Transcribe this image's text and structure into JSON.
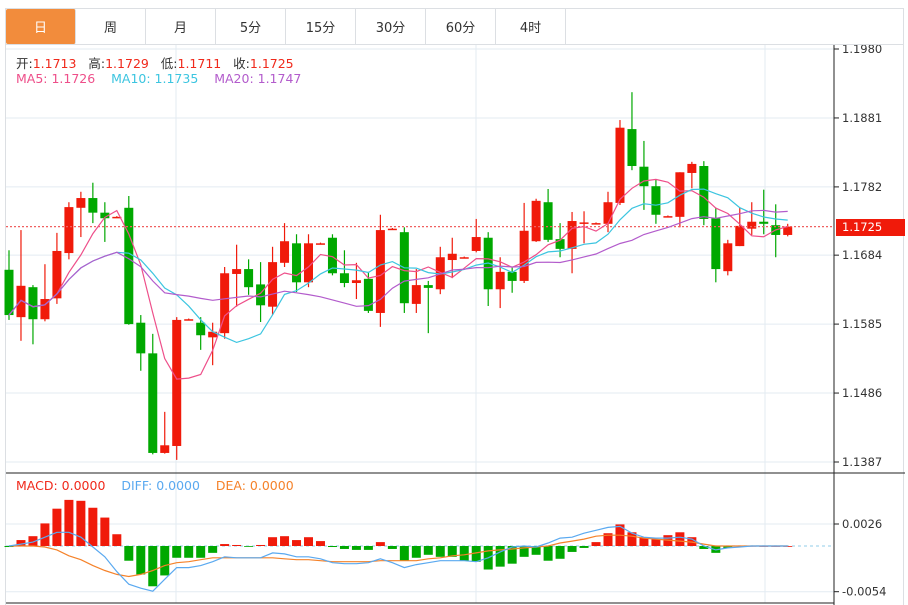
{
  "tabs": [
    {
      "label": "日",
      "active": true
    },
    {
      "label": "周",
      "active": false
    },
    {
      "label": "月",
      "active": false
    },
    {
      "label": "5分",
      "active": false
    },
    {
      "label": "15分",
      "active": false
    },
    {
      "label": "30分",
      "active": false
    },
    {
      "label": "60分",
      "active": false
    },
    {
      "label": "4时",
      "active": false
    }
  ],
  "ohlc_legend": {
    "open_label": "开:",
    "open": "1.1713",
    "high_label": "高:",
    "high": "1.1729",
    "low_label": "低:",
    "low": "1.1711",
    "close_label": "收:",
    "close": "1.1725"
  },
  "ma_legend": {
    "ma5": "MA5: 1.1726",
    "ma10": "MA10: 1.1735",
    "ma20": "MA20: 1.1747"
  },
  "macd_legend": {
    "macd": "MACD: 0.0000",
    "diff": "DIFF: 0.0000",
    "dea": "DEA: 0.0000"
  },
  "current_price": "1.1725",
  "colors": {
    "up": "#f01a0a",
    "down": "#00a800",
    "ma5": "#ee4f8a",
    "ma10": "#3cc5e0",
    "ma20": "#b35ccc",
    "diff": "#5aa9f0",
    "dea": "#f5822a",
    "tab_active": "#f28c3c"
  },
  "chart_data": {
    "type": "candlestick",
    "price_axis": {
      "ticks": [
        "1.1980",
        "1.1881",
        "1.1782",
        "1.1684",
        "1.1585",
        "1.1486",
        "1.1387"
      ],
      "range": [
        1.1387,
        1.198
      ]
    },
    "macd_axis": {
      "ticks": [
        "0.0026",
        "-0.0054"
      ],
      "range": [
        -0.0054,
        0.0026
      ]
    },
    "candles": [
      [
        1.1663,
        1.1691,
        1.1591,
        1.1598
      ],
      [
        1.1595,
        1.172,
        1.1561,
        1.164
      ],
      [
        1.1638,
        1.1641,
        1.1556,
        1.1592
      ],
      [
        1.1592,
        1.1671,
        1.1589,
        1.1621
      ],
      [
        1.1622,
        1.1716,
        1.1614,
        1.169
      ],
      [
        1.1687,
        1.176,
        1.1678,
        1.1753
      ],
      [
        1.1752,
        1.1775,
        1.171,
        1.1766
      ],
      [
        1.1766,
        1.1788,
        1.173,
        1.1745
      ],
      [
        1.1745,
        1.176,
        1.1703,
        1.1737
      ],
      [
        1.1739,
        1.174,
        1.1738,
        1.1739
      ],
      [
        1.1752,
        1.1769,
        1.1584,
        1.1585
      ],
      [
        1.1587,
        1.1598,
        1.1518,
        1.1543
      ],
      [
        1.1543,
        1.1571,
        1.1398,
        1.14
      ],
      [
        1.14,
        1.1459,
        1.1399,
        1.1411
      ],
      [
        1.141,
        1.1595,
        1.139,
        1.1591
      ],
      [
        1.1592,
        1.1593,
        1.1591,
        1.1592
      ],
      [
        1.1587,
        1.1595,
        1.1548,
        1.1569
      ],
      [
        1.1566,
        1.1587,
        1.1526,
        1.1574
      ],
      [
        1.1572,
        1.1667,
        1.1564,
        1.1658
      ],
      [
        1.1657,
        1.1699,
        1.161,
        1.1664
      ],
      [
        1.1664,
        1.1678,
        1.1627,
        1.1638
      ],
      [
        1.1642,
        1.1674,
        1.1588,
        1.1612
      ],
      [
        1.161,
        1.1696,
        1.1598,
        1.1674
      ],
      [
        1.1673,
        1.173,
        1.1667,
        1.1704
      ],
      [
        1.1701,
        1.1714,
        1.1631,
        1.1645
      ],
      [
        1.1645,
        1.1714,
        1.1638,
        1.1701
      ],
      [
        1.1701,
        1.1702,
        1.17,
        1.1701
      ],
      [
        1.1709,
        1.1714,
        1.1655,
        1.1658
      ],
      [
        1.1658,
        1.1691,
        1.1638,
        1.1644
      ],
      [
        1.1644,
        1.1673,
        1.1621,
        1.1648
      ],
      [
        1.165,
        1.166,
        1.1601,
        1.1604
      ],
      [
        1.1601,
        1.1742,
        1.1581,
        1.172
      ],
      [
        1.1722,
        1.1723,
        1.1721,
        1.1722
      ],
      [
        1.1717,
        1.1724,
        1.1601,
        1.1615
      ],
      [
        1.1614,
        1.1664,
        1.1601,
        1.1641
      ],
      [
        1.1641,
        1.1647,
        1.1572,
        1.1637
      ],
      [
        1.1635,
        1.1696,
        1.1628,
        1.1681
      ],
      [
        1.1677,
        1.1709,
        1.1651,
        1.1686
      ],
      [
        1.1681,
        1.1682,
        1.168,
        1.1681
      ],
      [
        1.169,
        1.1736,
        1.1688,
        1.171
      ],
      [
        1.1709,
        1.1717,
        1.1611,
        1.1635
      ],
      [
        1.1635,
        1.1681,
        1.1608,
        1.166
      ],
      [
        1.166,
        1.1667,
        1.163,
        1.1647
      ],
      [
        1.1647,
        1.1759,
        1.1644,
        1.1719
      ],
      [
        1.1704,
        1.1765,
        1.1703,
        1.1762
      ],
      [
        1.176,
        1.1779,
        1.1703,
        1.1706
      ],
      [
        1.1707,
        1.173,
        1.1681,
        1.1693
      ],
      [
        1.1693,
        1.1746,
        1.1658,
        1.1733
      ],
      [
        1.173,
        1.1747,
        1.1701,
        1.1731
      ],
      [
        1.173,
        1.1731,
        1.1729,
        1.173
      ],
      [
        1.1729,
        1.1775,
        1.1717,
        1.176
      ],
      [
        1.1759,
        1.1878,
        1.1756,
        1.1867
      ],
      [
        1.1865,
        1.1918,
        1.1806,
        1.1812
      ],
      [
        1.1811,
        1.1848,
        1.1749,
        1.1783
      ],
      [
        1.1783,
        1.1792,
        1.1729,
        1.1742
      ],
      [
        1.174,
        1.1741,
        1.1739,
        1.174
      ],
      [
        1.1739,
        1.1803,
        1.1724,
        1.1803
      ],
      [
        1.1802,
        1.1818,
        1.178,
        1.1815
      ],
      [
        1.1812,
        1.1819,
        1.1727,
        1.1736
      ],
      [
        1.1737,
        1.1752,
        1.1645,
        1.1664
      ],
      [
        1.1661,
        1.1706,
        1.1655,
        1.1701
      ],
      [
        1.1697,
        1.1752,
        1.1697,
        1.1726
      ],
      [
        1.1722,
        1.176,
        1.1713,
        1.1732
      ],
      [
        1.1732,
        1.1778,
        1.1714,
        1.1729
      ],
      [
        1.1727,
        1.1757,
        1.1681,
        1.1713
      ],
      [
        1.1713,
        1.1729,
        1.1711,
        1.1725
      ]
    ],
    "macd": [
      -0.00012,
      0.0007,
      0.00116,
      0.00267,
      0.00441,
      0.00545,
      0.00534,
      0.00452,
      0.00336,
      0.00139,
      -0.00174,
      -0.00336,
      -0.00476,
      -0.00348,
      -0.00139,
      -0.00139,
      -0.00139,
      -0.00081,
      0.00023,
      0.00012,
      -6e-05,
      0.00012,
      0.00104,
      0.00116,
      0.0007,
      0.00104,
      0.00058,
      -0.00012,
      -0.00035,
      -0.00046,
      -0.00046,
      0.00046,
      -0.00035,
      -0.00174,
      -0.00139,
      -0.00104,
      -0.00128,
      -0.00128,
      -0.00174,
      -0.00186,
      -0.00278,
      -0.00244,
      -0.00209,
      -0.00128,
      -0.00104,
      -0.00174,
      -0.00151,
      -0.0007,
      -0.00023,
      0.00046,
      0.00151,
      0.00255,
      0.00162,
      0.00104,
      0.00081,
      0.00128,
      0.00162,
      0.00104,
      -0.00035,
      -0.00081,
      -0.00023,
      3e-05,
      2e-05,
      0,
      0,
      0
    ],
    "diff": [
      0,
      0.00023,
      0.00046,
      0.00104,
      0.00162,
      0.00162,
      0.00104,
      -0.00012,
      -0.00128,
      -0.00302,
      -0.00452,
      -0.00499,
      -0.00534,
      -0.00394,
      -0.00255,
      -0.00255,
      -0.00232,
      -0.00186,
      -0.00128,
      -0.00139,
      -0.00139,
      -0.00139,
      -0.00081,
      -0.00093,
      -0.00128,
      -0.00128,
      -0.00151,
      -0.00197,
      -0.00209,
      -0.00209,
      -0.00197,
      -0.00151,
      -0.00197,
      -0.00255,
      -0.0022,
      -0.00197,
      -0.00174,
      -0.00174,
      -0.00174,
      -0.00186,
      -0.00139,
      -0.0007,
      -0.00012,
      0,
      -0.00012,
      0.00035,
      0.00093,
      0.00104,
      0.00151,
      0.00186,
      0.0022,
      0.00232,
      0.00151,
      0.00104,
      0.00093,
      0.00093,
      0.00104,
      0.00081,
      0,
      -0.00046,
      -0.00023,
      -0.00012,
      0,
      0,
      0,
      0
    ],
    "dea": [
      0,
      0,
      0,
      -0.00012,
      -0.00046,
      -0.00116,
      -0.00162,
      -0.00232,
      -0.0029,
      -0.00336,
      -0.0036,
      -0.00336,
      -0.0029,
      -0.00232,
      -0.00197,
      -0.00186,
      -0.00162,
      -0.00139,
      -0.00139,
      -0.00139,
      -0.00139,
      -0.00139,
      -0.00139,
      -0.00151,
      -0.00162,
      -0.00162,
      -0.00174,
      -0.00186,
      -0.00186,
      -0.00186,
      -0.00186,
      -0.00174,
      -0.00174,
      -0.00174,
      -0.00174,
      -0.00151,
      -0.00139,
      -0.00116,
      -0.00104,
      -0.00081,
      -0.00058,
      -0.00046,
      -0.00035,
      -0.00023,
      -0.00012,
      0,
      0.00035,
      0.00058,
      0.00081,
      0.00116,
      0.00128,
      0.00128,
      0.00116,
      0.00093,
      0.00081,
      0.0007,
      0.00058,
      0.00046,
      0.00023,
      0,
      0,
      0,
      0,
      0,
      0,
      0
    ]
  }
}
